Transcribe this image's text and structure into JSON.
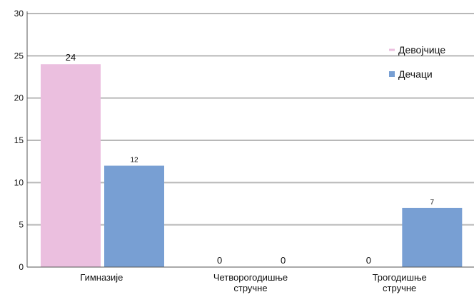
{
  "chart_data": {
    "type": "bar",
    "categories": [
      [
        "Гимназије"
      ],
      [
        "Четворогодишње",
        "стручне"
      ],
      [
        "Трогодишње",
        "стручне"
      ]
    ],
    "series": [
      {
        "name": "Девојчице",
        "color": "#ebbfdf",
        "values": [
          24,
          0,
          0
        ]
      },
      {
        "name": "Дечаци",
        "color": "#789fd3",
        "values": [
          12,
          0,
          7
        ]
      }
    ],
    "ylim": [
      0,
      30
    ],
    "yticks": [
      0,
      5,
      10,
      15,
      20,
      25,
      30
    ],
    "grid": true,
    "legend_position": "top-right",
    "title": "",
    "xlabel": "",
    "ylabel": ""
  }
}
